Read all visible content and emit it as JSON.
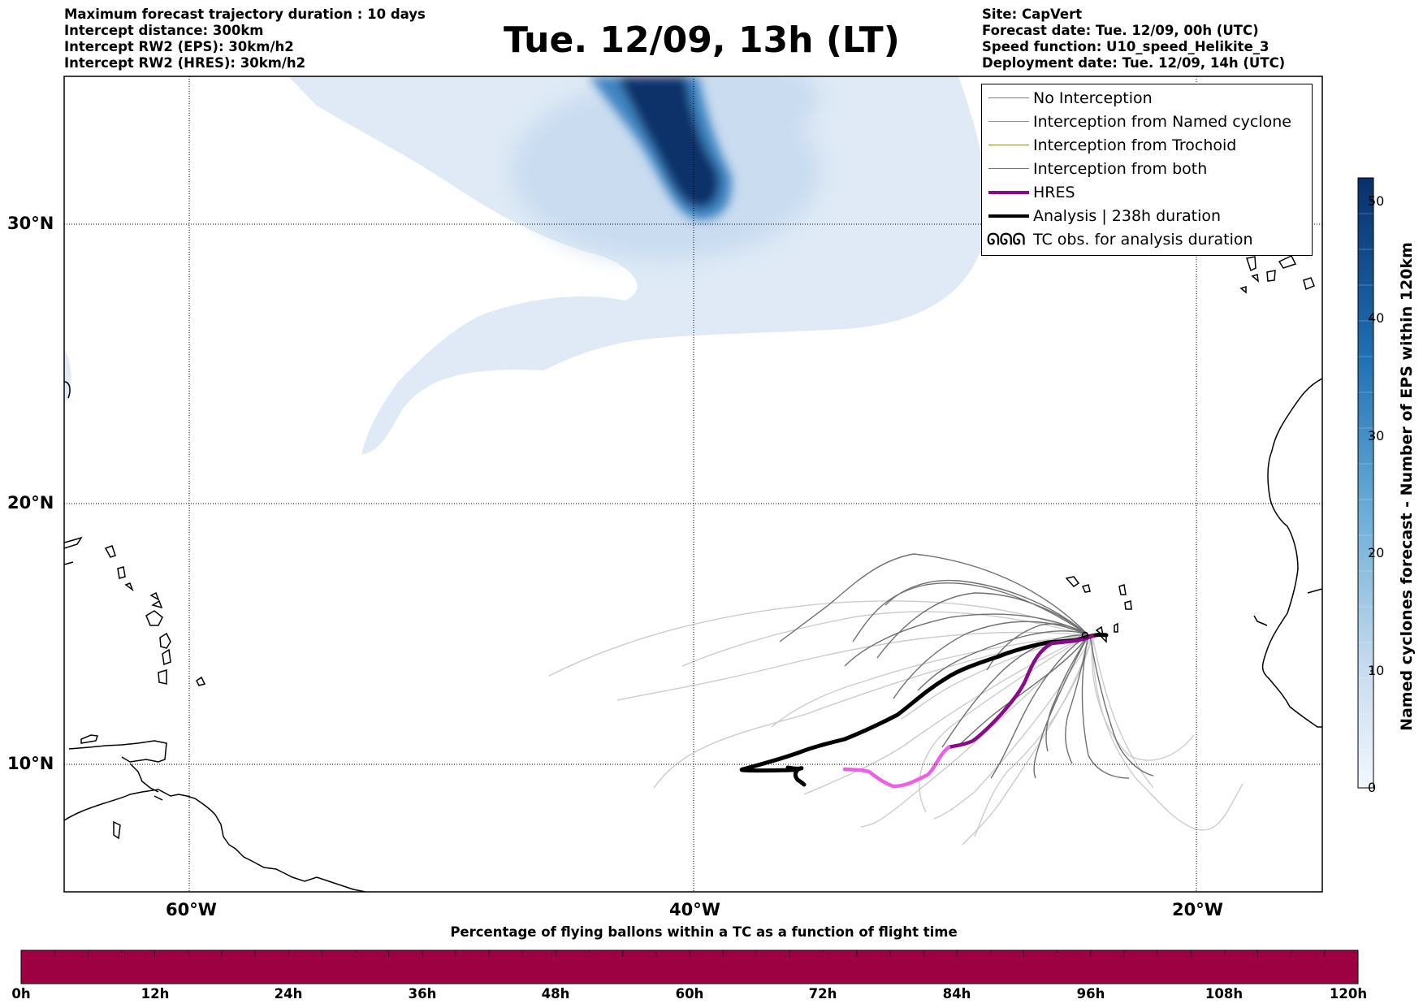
{
  "header": {
    "left_lines": [
      "Maximum forecast trajectory duration : 10 days",
      "Intercept distance: 300km",
      "Intercept RW2 (EPS):  30km/h2",
      "Intercept RW2 (HRES): 30km/h2"
    ],
    "title": "Tue. 12/09, 13h (LT)",
    "right_lines": [
      "Site: CapVert",
      "Forecast date: Tue. 12/09, 00h (UTC)",
      "Speed function: U10_speed_Helikite_3",
      "Deployment date: Tue. 12/09, 14h (UTC)"
    ]
  },
  "map": {
    "lat_labels": [
      "30°N",
      "20°N",
      "10°N"
    ],
    "lon_labels": [
      "60°W",
      "40°W",
      "20°W"
    ],
    "gridlines": true
  },
  "legend": {
    "items": [
      {
        "label": "No Interception",
        "color": "#7f7f7f",
        "style": "thin"
      },
      {
        "label": "Interception from Named cyclone",
        "color": "#f4733f",
        "style": "thin"
      },
      {
        "label": "Interception from Trochoid",
        "color": "#8f8a3a",
        "style": "thin"
      },
      {
        "label": "Interception from both",
        "color": "#3aa13a",
        "style": "thin"
      },
      {
        "label": "HRES",
        "color": "#8b0a8b",
        "style": "thick"
      },
      {
        "label": "Analysis | 238h duration",
        "color": "#000000",
        "style": "thick"
      },
      {
        "label": "TC obs. for analysis duration",
        "color": "#000000",
        "style": "symbols"
      }
    ],
    "tc_symbol": "ᘏᘏᘏ"
  },
  "colorbar": {
    "label": "Named cyclones forecast - Number of EPS within 120km",
    "ticks": [
      "0",
      "10",
      "20",
      "30",
      "40",
      "50"
    ],
    "max": 52,
    "colors": [
      "#deebf7",
      "#9ecae1",
      "#4292c6",
      "#08306b"
    ]
  },
  "bottom_bar": {
    "title": "Percentage of flying ballons within a TC as a function of flight time",
    "ticks": [
      "0h",
      "12h",
      "24h",
      "36h",
      "48h",
      "60h",
      "72h",
      "84h",
      "96h",
      "108h",
      "120h"
    ],
    "color": "#9e0142"
  }
}
